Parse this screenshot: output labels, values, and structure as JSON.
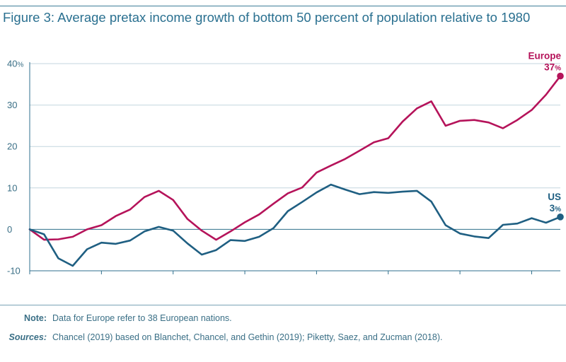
{
  "title": "Figure 3: Average pretax income growth of bottom 50 percent of population relative to 1980",
  "note_label": "Note:",
  "note_text": "Data for Europe refer to 38 European nations.",
  "sources_label": "Sources:",
  "sources_text": "Chancel (2019) based on Blanchet, Chancel, and Gethin (2019); Piketty, Saez, and Zucman (2018).",
  "chart_data": {
    "type": "line",
    "title": "Figure 3: Average pretax income growth of bottom 50 percent of population relative to 1980",
    "xlabel": "",
    "ylabel": "",
    "xlim": [
      1980,
      2017
    ],
    "ylim": [
      -10,
      40
    ],
    "x_ticks": [
      1980,
      1985,
      1990,
      1995,
      2000,
      2005,
      2010,
      2015
    ],
    "y_ticks": [
      -10,
      0,
      10,
      20,
      30,
      40
    ],
    "y_tick_labels": [
      "-10",
      "0",
      "10",
      "20",
      "30",
      "40"
    ],
    "y_unit": "%",
    "grid": "horizontal",
    "x": [
      1980,
      1981,
      1982,
      1983,
      1984,
      1985,
      1986,
      1987,
      1988,
      1989,
      1990,
      1991,
      1992,
      1993,
      1994,
      1995,
      1996,
      1997,
      1998,
      1999,
      2000,
      2001,
      2002,
      2003,
      2004,
      2005,
      2006,
      2007,
      2008,
      2009,
      2010,
      2011,
      2012,
      2013,
      2014,
      2015,
      2016,
      2017
    ],
    "series": [
      {
        "name": "Europe",
        "color": "#b5135a",
        "end_label": "37",
        "values": [
          0,
          -2.5,
          -2.4,
          -1.8,
          0,
          1,
          3.2,
          4.8,
          7.8,
          9.3,
          7.1,
          2.5,
          -0.3,
          -2.5,
          -0.5,
          1.7,
          3.6,
          6.2,
          8.7,
          10.1,
          13.7,
          15.4,
          17,
          19,
          21,
          22,
          26,
          29.2,
          30.9,
          25,
          26.2,
          26.4,
          25.8,
          24.4,
          26.4,
          28.8,
          32.5,
          37
        ]
      },
      {
        "name": "US",
        "color": "#1f5f82",
        "end_label": "3",
        "values": [
          0,
          -1.2,
          -7,
          -8.8,
          -4.8,
          -3.2,
          -3.5,
          -2.7,
          -0.5,
          0.6,
          -0.3,
          -3.4,
          -6.1,
          -5,
          -2.6,
          -2.8,
          -1.8,
          0.3,
          4.4,
          6.6,
          8.9,
          10.8,
          9.6,
          8.5,
          9,
          8.8,
          9.1,
          9.3,
          6.7,
          1,
          -1,
          -1.7,
          -2.1,
          1.1,
          1.4,
          2.7,
          1.6,
          3
        ]
      }
    ]
  }
}
